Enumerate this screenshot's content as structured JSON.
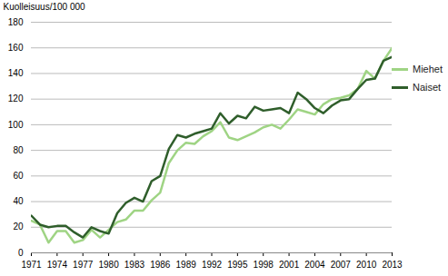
{
  "chart_data": {
    "type": "line",
    "y_label": "Kuolleisuus/100 000",
    "x": [
      1971,
      1972,
      1973,
      1974,
      1975,
      1976,
      1977,
      1978,
      1979,
      1980,
      1981,
      1982,
      1983,
      1984,
      1985,
      1986,
      1987,
      1988,
      1989,
      1990,
      1991,
      1992,
      1993,
      1994,
      1995,
      1996,
      1997,
      1998,
      1999,
      2000,
      2001,
      2002,
      2003,
      2004,
      2005,
      2006,
      2007,
      2008,
      2009,
      2010,
      2011,
      2012,
      2013
    ],
    "series": [
      {
        "name": "Miehet",
        "color": "#9fd484",
        "values": [
          25,
          22,
          8,
          17,
          17,
          8,
          10,
          18,
          12,
          18,
          24,
          26,
          33,
          33,
          41,
          47,
          70,
          80,
          86,
          85,
          91,
          95,
          102,
          90,
          88,
          91,
          94,
          98,
          100,
          97,
          104,
          112,
          110,
          108,
          116,
          120,
          121,
          123,
          128,
          142,
          136,
          150,
          160
        ]
      },
      {
        "name": "Naiset",
        "color": "#2f5e2b",
        "values": [
          29,
          22,
          20,
          21,
          21,
          16,
          12,
          20,
          17,
          15,
          31,
          39,
          43,
          40,
          56,
          60,
          81,
          92,
          90,
          93,
          95,
          97,
          109,
          101,
          107,
          105,
          114,
          111,
          112,
          113,
          109,
          125,
          120,
          113,
          109,
          115,
          119,
          120,
          128,
          135,
          136,
          150,
          153
        ]
      }
    ],
    "xlim": [
      1971,
      2013
    ],
    "xticks": [
      1971,
      1974,
      1977,
      1980,
      1983,
      1986,
      1989,
      1992,
      1995,
      1998,
      2001,
      2004,
      2007,
      2010,
      2013
    ],
    "ylim": [
      0,
      180
    ],
    "yticks": [
      0,
      20,
      40,
      60,
      80,
      100,
      120,
      140,
      160,
      180
    ],
    "grid": true,
    "legend": "right"
  }
}
